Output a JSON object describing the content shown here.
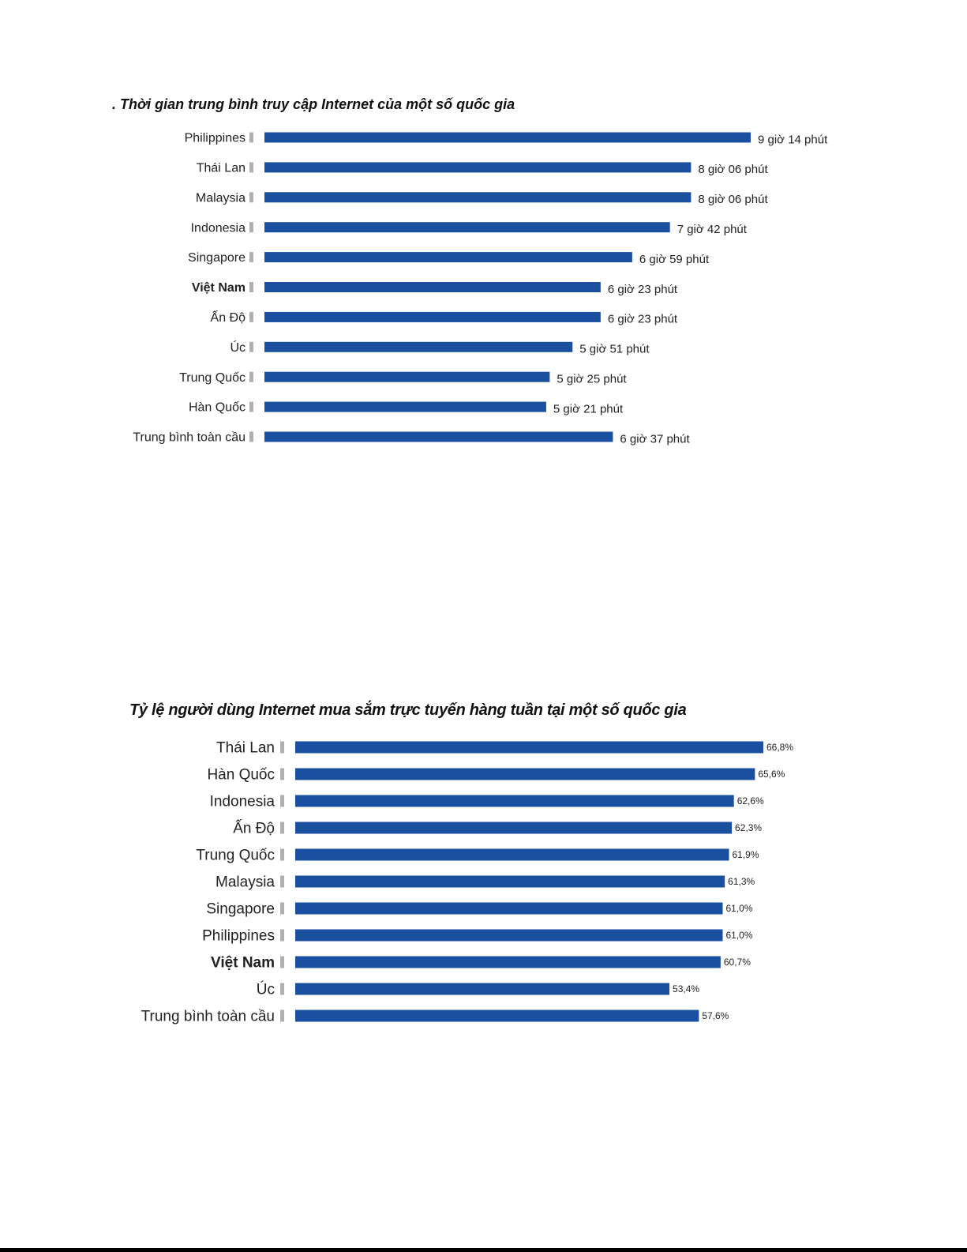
{
  "colors": {
    "bar": "#1b4fa0",
    "tick": "#b0b0b0",
    "text": "#222222"
  },
  "chart_data": [
    {
      "type": "bar",
      "orientation": "horizontal",
      "title": ". Thời gian trung bình truy cập Internet của một số quốc gia",
      "unit": "minutes",
      "categories": [
        "Philippines",
        "Thái Lan",
        "Malaysia",
        "Indonesia",
        "Singapore",
        "Việt Nam",
        "Ấn Độ",
        "Úc",
        "Trung Quốc",
        "Hàn Quốc",
        "Trung bình toàn cầu"
      ],
      "highlight": "Việt Nam",
      "values": [
        554,
        486,
        486,
        462,
        419,
        383,
        383,
        351,
        325,
        321,
        397
      ],
      "value_labels": [
        "9 giờ 14 phút",
        "8 giờ 06 phút",
        "8 giờ 06 phút",
        "7 giờ 42 phút",
        "6 giờ 59 phút",
        "6 giờ 23 phút",
        "6 giờ 23 phút",
        "5 giờ 51 phút",
        "5 giờ 25 phút",
        "5 giờ 21 phút",
        "6 giờ 37 phút"
      ],
      "xlim": [
        0,
        554
      ],
      "grid": false,
      "legend": "none"
    },
    {
      "type": "bar",
      "orientation": "horizontal",
      "title": "Tỷ lệ người dùng Internet mua sắm trực tuyến hàng tuần tại một số quốc gia",
      "unit": "%",
      "categories": [
        "Thái Lan",
        "Hàn Quốc",
        "Indonesia",
        "Ấn Độ",
        "Trung Quốc",
        "Malaysia",
        "Singapore",
        "Philippines",
        "Việt Nam",
        "Úc",
        "Trung bình toàn cầu"
      ],
      "highlight": "Việt Nam",
      "values": [
        66.8,
        65.6,
        62.6,
        62.3,
        61.9,
        61.3,
        61.0,
        61.0,
        60.7,
        53.4,
        57.6
      ],
      "value_labels": [
        "66,8%",
        "65,6%",
        "62,6%",
        "62,3%",
        "61,9%",
        "61,3%",
        "61,0%",
        "61,0%",
        "60,7%",
        "53,4%",
        "57,6%"
      ],
      "xlim": [
        0,
        66.8
      ],
      "grid": false,
      "legend": "none"
    }
  ]
}
